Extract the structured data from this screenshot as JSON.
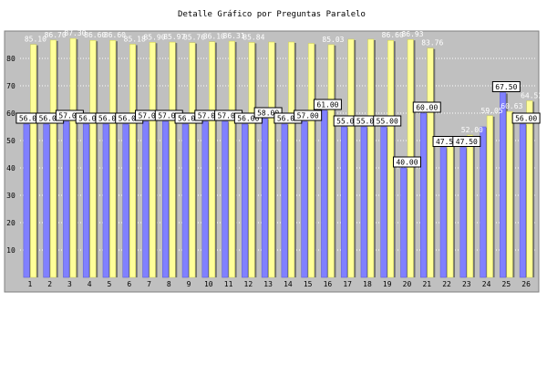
{
  "chart_data": {
    "type": "bar",
    "title": "Detalle Gráfico por Preguntas Paralelo",
    "xlabel": "",
    "ylabel": "",
    "ylim": [
      0,
      90
    ],
    "yticks": [
      10,
      20,
      30,
      40,
      50,
      60,
      70,
      80
    ],
    "grid": true,
    "categories": [
      "1",
      "2",
      "3",
      "4",
      "5",
      "6",
      "7",
      "8",
      "9",
      "10",
      "11",
      "12",
      "13",
      "14",
      "15",
      "16",
      "17",
      "18",
      "19",
      "20",
      "21",
      "22",
      "23",
      "24",
      "25",
      "26"
    ],
    "series": [
      {
        "color": "#8080ff",
        "values": [
          56.0,
          56.0,
          57.0,
          56.0,
          56.0,
          56.0,
          57.0,
          57.0,
          56.0,
          57.0,
          57.0,
          56.0,
          58.0,
          56.0,
          57.0,
          61.0,
          55.0,
          55.0,
          55.0,
          40.0,
          60.0,
          47.5,
          47.5,
          55.0,
          67.5,
          56.0
        ],
        "labels": [
          "56.00",
          "56.00",
          "57.00",
          "56.00",
          "56.00",
          "56.00",
          "57.00",
          "57.00",
          "56.00",
          "57.00",
          "57.00",
          "56.00",
          "58.00",
          "56.00",
          "57.00",
          "61.00",
          "55.00",
          "55.00",
          "55.00",
          "40.00",
          "60.00",
          "47.50",
          "47.50",
          "",
          "67.50",
          "56.00"
        ]
      },
      {
        "color": "#ffff99",
        "values": [
          85.1,
          86.7,
          87.3,
          86.6,
          86.6,
          85.18,
          85.9,
          85.97,
          85.76,
          86.1,
          86.31,
          85.84,
          86.0,
          86.0,
          85.5,
          85.03,
          87.0,
          87.0,
          86.6,
          86.93,
          83.76,
          50.0,
          52.0,
          59.05,
          60.63,
          64.52
        ],
        "labels": [
          "85.10",
          "86.70",
          "87.30",
          "86.60",
          "86.60",
          "85.18",
          "85.90",
          "85.97",
          "85.76",
          "86.10",
          "86.31",
          "85.84",
          "",
          "",
          "",
          "85.03",
          "",
          "",
          "86.60",
          "86.93",
          "83.76",
          "",
          "52.00",
          "59.05",
          "60.63",
          "64.52"
        ]
      }
    ]
  }
}
